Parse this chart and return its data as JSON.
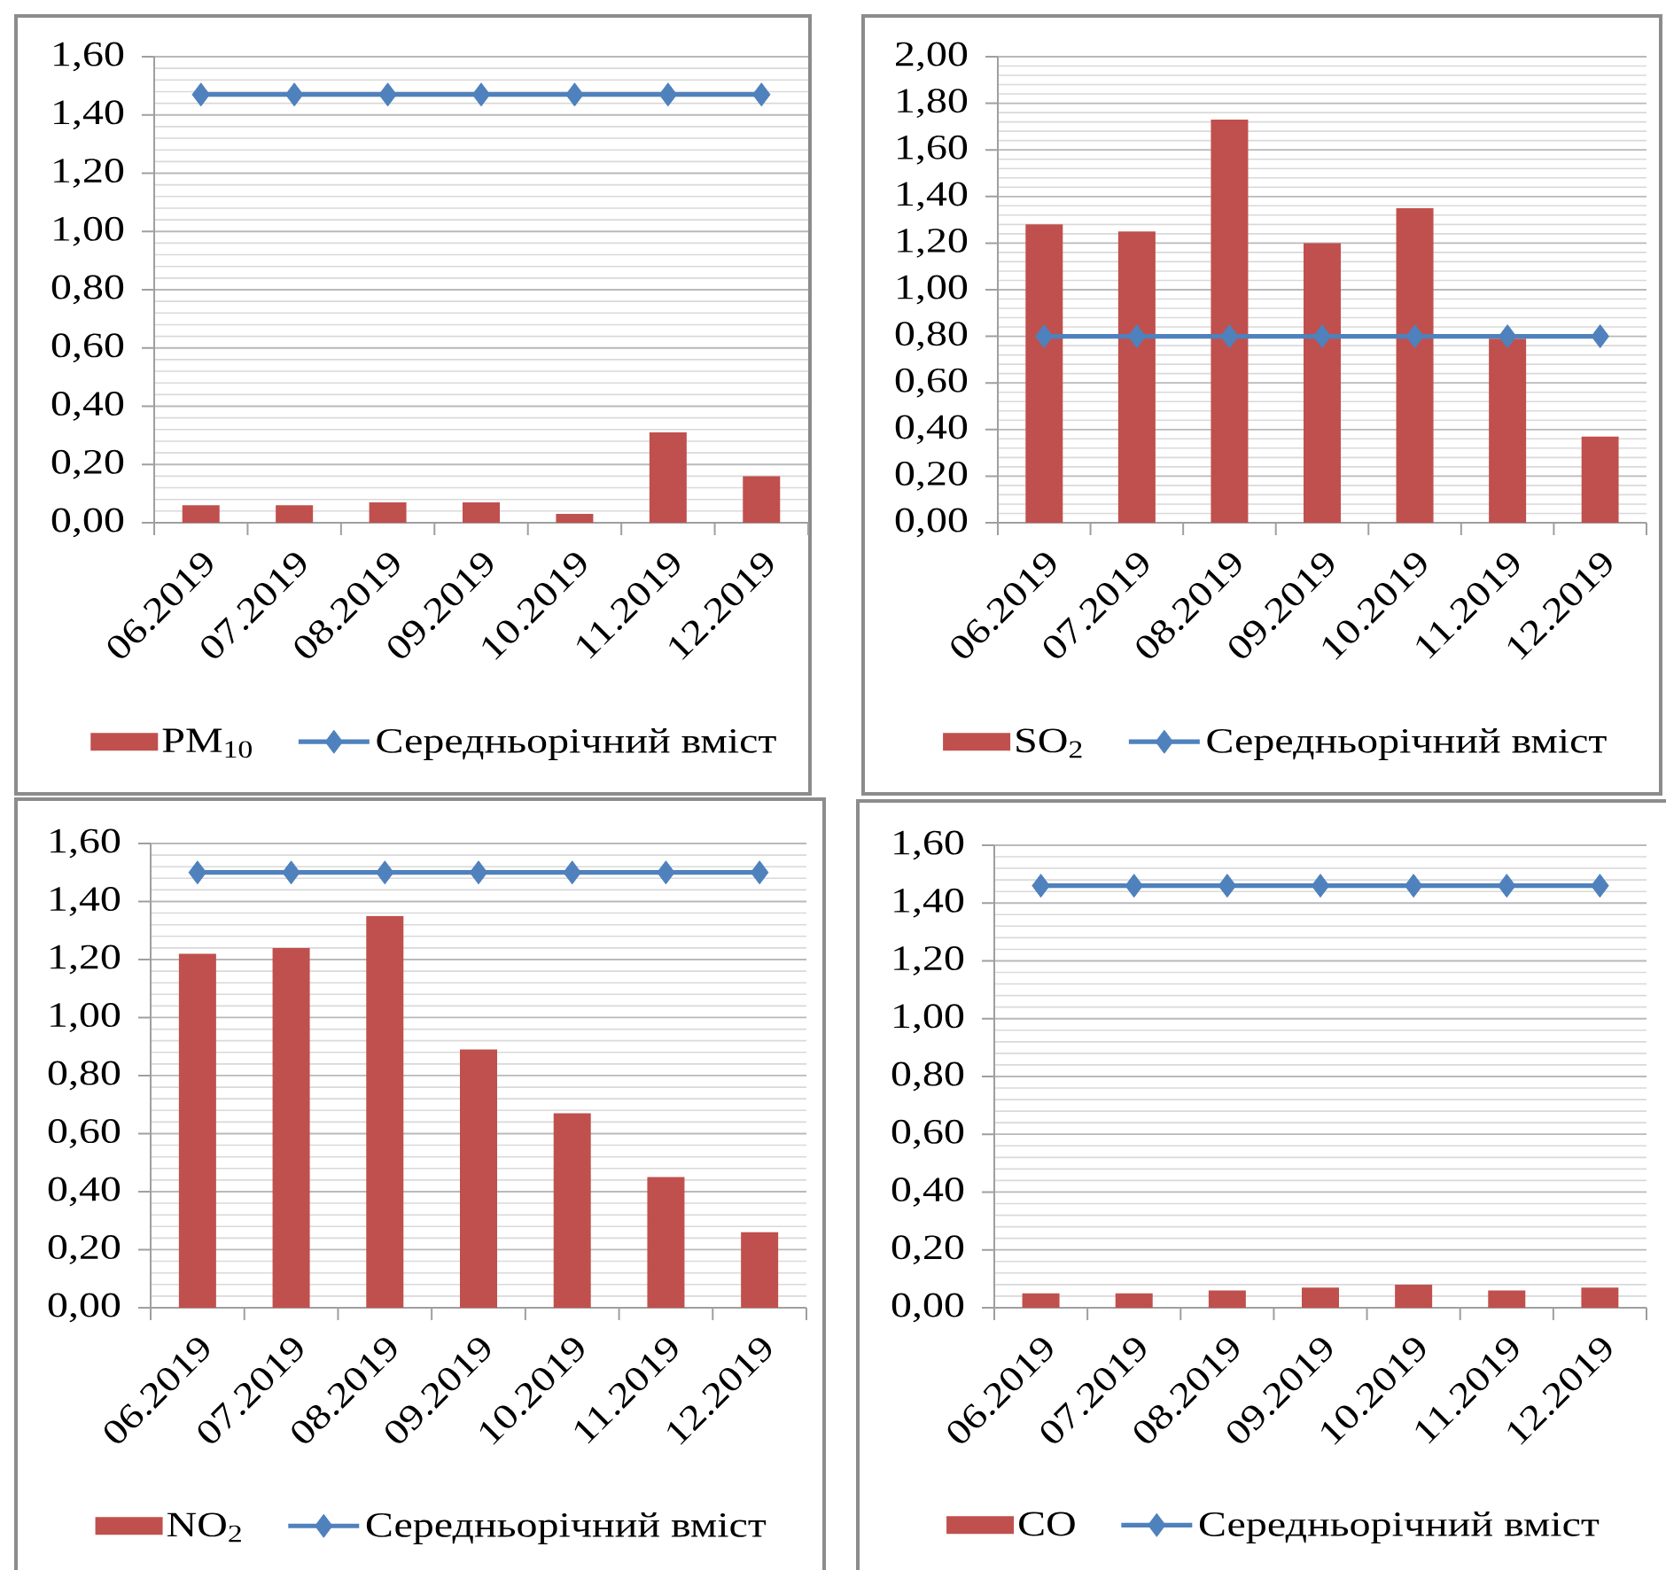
{
  "chart_data": [
    {
      "type": "bar",
      "categories": [
        "06.2019",
        "07.2019",
        "08.2019",
        "09.2019",
        "10.2019",
        "11.2019",
        "12.2019"
      ],
      "series": [
        {
          "name": "PM$_{10}$",
          "type": "bar",
          "color": "#c0504d",
          "values": [
            0.06,
            0.06,
            0.07,
            0.07,
            0.03,
            0.31,
            0.16
          ]
        },
        {
          "name": "Середньорічний вміст",
          "type": "line",
          "marker": "diamond",
          "color": "#4f81bd",
          "values": [
            1.47,
            1.47,
            1.47,
            1.47,
            1.47,
            1.47,
            1.47
          ]
        }
      ],
      "ylim": [
        0,
        1.6
      ],
      "yticks": [
        {
          "value": 0,
          "label": "0,00"
        },
        {
          "value": 0.2,
          "label": "0,20"
        },
        {
          "value": 0.4,
          "label": "0,40"
        },
        {
          "value": 0.6,
          "label": "0,60"
        },
        {
          "value": 0.8,
          "label": "0,80"
        },
        {
          "value": 1.0,
          "label": "1,00"
        },
        {
          "value": 1.2,
          "label": "1,20"
        },
        {
          "value": 1.4,
          "label": "1,40"
        },
        {
          "value": 1.6,
          "label": "1,60"
        }
      ],
      "grid": "y",
      "legend": "bottom"
    },
    {
      "type": "bar",
      "categories": [
        "06.2019",
        "07.2019",
        "08.2019",
        "09.2019",
        "10.2019",
        "11.2019",
        "12.2019"
      ],
      "series": [
        {
          "name": "SO$_{2}$",
          "type": "bar",
          "color": "#c0504d",
          "values": [
            1.28,
            1.25,
            1.73,
            1.2,
            1.35,
            0.79,
            0.37
          ]
        },
        {
          "name": "Середньорічний вміст",
          "type": "line",
          "marker": "diamond",
          "color": "#4f81bd",
          "values": [
            0.8,
            0.8,
            0.8,
            0.8,
            0.8,
            0.8,
            0.8
          ]
        }
      ],
      "ylim": [
        0,
        2.0
      ],
      "yticks": [
        {
          "value": 0,
          "label": "0,00"
        },
        {
          "value": 0.2,
          "label": "0,20"
        },
        {
          "value": 0.4,
          "label": "0,40"
        },
        {
          "value": 0.6,
          "label": "0,60"
        },
        {
          "value": 0.8,
          "label": "0,80"
        },
        {
          "value": 1.0,
          "label": "1,00"
        },
        {
          "value": 1.2,
          "label": "1,20"
        },
        {
          "value": 1.4,
          "label": "1,40"
        },
        {
          "value": 1.6,
          "label": "1,60"
        },
        {
          "value": 1.8,
          "label": "1,80"
        },
        {
          "value": 2.0,
          "label": "2,00"
        }
      ],
      "grid": "y",
      "legend": "bottom"
    },
    {
      "type": "bar",
      "categories": [
        "06.2019",
        "07.2019",
        "08.2019",
        "09.2019",
        "10.2019",
        "11.2019",
        "12.2019"
      ],
      "series": [
        {
          "name": "NO$_{2}$",
          "type": "bar",
          "color": "#c0504d",
          "values": [
            1.22,
            1.24,
            1.35,
            0.89,
            0.67,
            0.45,
            0.26
          ]
        },
        {
          "name": "Середньорічний вміст",
          "type": "line",
          "marker": "diamond",
          "color": "#4f81bd",
          "values": [
            1.5,
            1.5,
            1.5,
            1.5,
            1.5,
            1.5,
            1.5
          ]
        }
      ],
      "ylim": [
        0,
        1.6
      ],
      "yticks": [
        {
          "value": 0,
          "label": "0,00"
        },
        {
          "value": 0.2,
          "label": "0,20"
        },
        {
          "value": 0.4,
          "label": "0,40"
        },
        {
          "value": 0.6,
          "label": "0,60"
        },
        {
          "value": 0.8,
          "label": "0,80"
        },
        {
          "value": 1.0,
          "label": "1,00"
        },
        {
          "value": 1.2,
          "label": "1,20"
        },
        {
          "value": 1.4,
          "label": "1,40"
        },
        {
          "value": 1.6,
          "label": "1,60"
        }
      ],
      "grid": "y",
      "legend": "bottom"
    },
    {
      "type": "bar",
      "categories": [
        "06.2019",
        "07.2019",
        "08.2019",
        "09.2019",
        "10.2019",
        "11.2019",
        "12.2019"
      ],
      "series": [
        {
          "name": "CO",
          "type": "bar",
          "color": "#c0504d",
          "values": [
            0.05,
            0.05,
            0.06,
            0.07,
            0.08,
            0.06,
            0.07
          ]
        },
        {
          "name": "Середньорічний вміст",
          "type": "line",
          "marker": "diamond",
          "color": "#4f81bd",
          "values": [
            1.46,
            1.46,
            1.46,
            1.46,
            1.46,
            1.46,
            1.46
          ]
        }
      ],
      "ylim": [
        0,
        1.6
      ],
      "yticks": [
        {
          "value": 0,
          "label": "0,00"
        },
        {
          "value": 0.2,
          "label": "0,20"
        },
        {
          "value": 0.4,
          "label": "0,40"
        },
        {
          "value": 0.6,
          "label": "0,60"
        },
        {
          "value": 0.8,
          "label": "0,80"
        },
        {
          "value": 1.0,
          "label": "1,00"
        },
        {
          "value": 1.2,
          "label": "1,20"
        },
        {
          "value": 1.4,
          "label": "1,40"
        },
        {
          "value": 1.6,
          "label": "1,60"
        }
      ],
      "grid": "y",
      "legend": "bottom"
    }
  ]
}
